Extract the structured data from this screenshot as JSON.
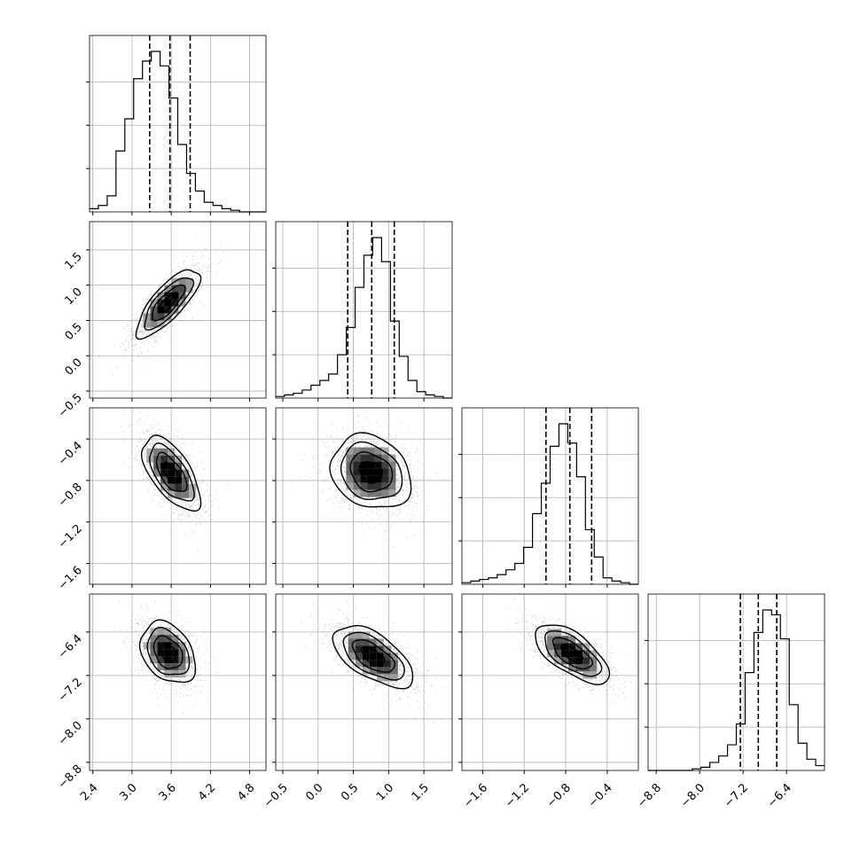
{
  "chart_data": {
    "type": "corner",
    "n_params": 4,
    "grid": true,
    "colors": {
      "hist": "#000000",
      "quantile": "#000000",
      "grid": "#b0b0b0",
      "scatter": "#9a9a9a"
    },
    "params": [
      {
        "range": [
          2.35,
          5.05
        ],
        "ticks": [
          2.4,
          3.0,
          3.6,
          4.2,
          4.8
        ],
        "tick_labels": [
          "2.4",
          "3.0",
          "3.6",
          "4.2",
          "4.8"
        ],
        "quantiles": [
          3.27,
          3.58,
          3.89
        ],
        "hist": {
          "start": 2.35,
          "bin_width": 0.135,
          "counts": [
            2,
            4,
            10,
            38,
            58,
            83,
            94,
            100,
            91,
            71,
            42,
            24,
            13,
            6,
            4,
            2,
            1,
            0,
            0,
            0
          ]
        }
      },
      {
        "range": [
          -0.6,
          1.9
        ],
        "ticks": [
          -0.5,
          0.0,
          0.5,
          1.0,
          1.5
        ],
        "tick_labels": [
          "−0.5",
          "0.0",
          "0.5",
          "1.0",
          "1.5"
        ],
        "quantiles": [
          0.42,
          0.76,
          1.08
        ],
        "hist": {
          "start": -0.6,
          "bin_width": 0.125,
          "counts": [
            1,
            2,
            3,
            5,
            8,
            11,
            15,
            27,
            44,
            69,
            89,
            100,
            85,
            48,
            26,
            11,
            4,
            2,
            1,
            0
          ]
        }
      },
      {
        "range": [
          -1.8,
          -0.1
        ],
        "ticks": [
          -1.6,
          -1.2,
          -0.8,
          -0.4
        ],
        "tick_labels": [
          "−1.6",
          "−1.2",
          "−0.8",
          "−0.4"
        ],
        "quantiles": [
          -0.99,
          -0.76,
          -0.55
        ],
        "hist": {
          "start": -1.8,
          "bin_width": 0.085,
          "counts": [
            1,
            2,
            3,
            4,
            6,
            9,
            13,
            23,
            44,
            63,
            86,
            100,
            88,
            67,
            34,
            17,
            4,
            2,
            1,
            0
          ]
        }
      },
      {
        "range": [
          -8.95,
          -5.7
        ],
        "ticks": [
          -8.8,
          -8.0,
          -7.2,
          -6.4
        ],
        "tick_labels": [
          "−8.8",
          "−8.0",
          "−7.2",
          "−6.4"
        ],
        "quantiles": [
          -7.25,
          -6.92,
          -6.58
        ],
        "hist": {
          "start": -8.95,
          "bin_width": 0.1625,
          "counts": [
            0,
            0,
            0,
            0,
            0,
            1,
            2,
            5,
            9,
            16,
            29,
            61,
            86,
            100,
            97,
            82,
            41,
            17,
            7,
            3
          ]
        }
      }
    ],
    "pairs": [
      {
        "row": 1,
        "col": 0,
        "rho": 0.78,
        "mode": [
          3.55,
          0.75
        ],
        "sigma": [
          0.23,
          0.23
        ]
      },
      {
        "row": 2,
        "col": 0,
        "rho": -0.62,
        "mode": [
          3.6,
          -0.73
        ],
        "sigma": [
          0.21,
          0.17
        ]
      },
      {
        "row": 2,
        "col": 1,
        "rho": -0.2,
        "mode": [
          0.75,
          -0.72
        ],
        "sigma": [
          0.27,
          0.17
        ]
      },
      {
        "row": 3,
        "col": 0,
        "rho": -0.32,
        "mode": [
          3.55,
          -6.78
        ],
        "sigma": [
          0.2,
          0.27
        ]
      },
      {
        "row": 3,
        "col": 1,
        "rho": -0.6,
        "mode": [
          0.78,
          -6.85
        ],
        "sigma": [
          0.27,
          0.27
        ]
      },
      {
        "row": 3,
        "col": 2,
        "rho": -0.65,
        "mode": [
          -0.74,
          -6.8
        ],
        "sigma": [
          0.17,
          0.26
        ]
      }
    ]
  }
}
